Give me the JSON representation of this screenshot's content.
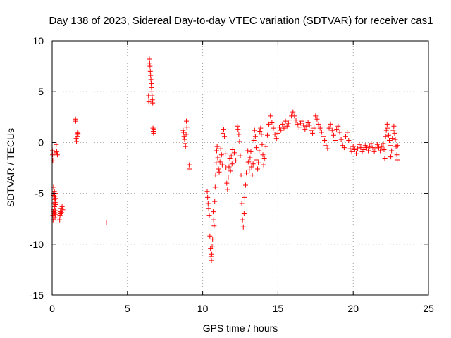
{
  "chart_data": {
    "type": "scatter",
    "title": "Day 138 of 2023, Sidereal Day-to-day VTEC variation (SDTVAR) for receiver cas1",
    "xlabel": "GPS time / hours",
    "ylabel": "SDTVAR / TECUs",
    "xlim": [
      0,
      25
    ],
    "ylim": [
      -15,
      10
    ],
    "xticks": [
      0,
      5,
      10,
      15,
      20,
      25
    ],
    "yticks": [
      -15,
      -10,
      -5,
      0,
      5,
      10
    ],
    "xtick_labels": [
      "0",
      "5",
      "10",
      "15",
      "20",
      "25"
    ],
    "ytick_labels": [
      "-15",
      "-10",
      "-5",
      "0",
      "5",
      "10"
    ],
    "grid": true,
    "marker": "+",
    "color": "#ff0000",
    "series": [
      {
        "name": "cas1",
        "points": [
          [
            0.02,
            -0.8
          ],
          [
            0.03,
            -1.2
          ],
          [
            0.04,
            -1.8
          ],
          [
            0.05,
            -7.2
          ],
          [
            0.06,
            -7.6
          ],
          [
            0.07,
            -6.8
          ],
          [
            0.08,
            -5.0
          ],
          [
            0.09,
            -4.4
          ],
          [
            0.1,
            -5.2
          ],
          [
            0.11,
            -6.0
          ],
          [
            0.12,
            -6.6
          ],
          [
            0.13,
            -7.0
          ],
          [
            0.14,
            -5.6
          ],
          [
            0.15,
            -4.8
          ],
          [
            0.16,
            -5.3
          ],
          [
            0.17,
            -6.3
          ],
          [
            0.18,
            -6.9
          ],
          [
            0.19,
            -7.4
          ],
          [
            0.2,
            -5.9
          ],
          [
            0.21,
            -5.5
          ],
          [
            0.22,
            -6.1
          ],
          [
            0.23,
            -6.7
          ],
          [
            0.24,
            -7.1
          ],
          [
            0.25,
            -5.0
          ],
          [
            0.26,
            -1.0
          ],
          [
            0.27,
            -0.2
          ],
          [
            0.3,
            -0.9
          ],
          [
            0.35,
            -1.2
          ],
          [
            0.5,
            -7.6
          ],
          [
            0.52,
            -7.2
          ],
          [
            0.55,
            -6.8
          ],
          [
            0.58,
            -7.0
          ],
          [
            0.6,
            -6.5
          ],
          [
            0.63,
            -6.9
          ],
          [
            0.66,
            -6.3
          ],
          [
            0.7,
            -6.6
          ],
          [
            1.55,
            2.3
          ],
          [
            1.57,
            2.1
          ],
          [
            1.6,
            0.4
          ],
          [
            1.62,
            0.1
          ],
          [
            1.65,
            0.8
          ],
          [
            1.68,
            1.0
          ],
          [
            1.7,
            0.6
          ],
          [
            1.72,
            0.9
          ],
          [
            3.6,
            -7.9
          ],
          [
            6.4,
            4.6
          ],
          [
            6.42,
            4.0
          ],
          [
            6.44,
            3.8
          ],
          [
            6.46,
            8.2
          ],
          [
            6.48,
            7.8
          ],
          [
            6.5,
            7.5
          ],
          [
            6.52,
            7.0
          ],
          [
            6.54,
            6.6
          ],
          [
            6.56,
            6.2
          ],
          [
            6.58,
            5.8
          ],
          [
            6.6,
            5.4
          ],
          [
            6.62,
            5.0
          ],
          [
            6.64,
            4.6
          ],
          [
            6.66,
            4.2
          ],
          [
            6.68,
            3.9
          ],
          [
            6.7,
            1.4
          ],
          [
            6.72,
            1.1
          ],
          [
            6.74,
            0.9
          ],
          [
            6.76,
            1.3
          ],
          [
            8.7,
            1.2
          ],
          [
            8.73,
            1.0
          ],
          [
            8.76,
            0.6
          ],
          [
            8.8,
            0.3
          ],
          [
            8.83,
            -0.1
          ],
          [
            8.86,
            -0.4
          ],
          [
            8.9,
            0.8
          ],
          [
            8.92,
            2.1
          ],
          [
            8.95,
            1.5
          ],
          [
            9.1,
            -2.2
          ],
          [
            9.15,
            -2.6
          ],
          [
            10.3,
            -4.8
          ],
          [
            10.33,
            -5.4
          ],
          [
            10.36,
            -6.0
          ],
          [
            10.4,
            -6.5
          ],
          [
            10.44,
            -7.2
          ],
          [
            10.48,
            -9.2
          ],
          [
            10.52,
            -10.4
          ],
          [
            10.55,
            -11.2
          ],
          [
            10.58,
            -11.6
          ],
          [
            10.6,
            -11.0
          ],
          [
            10.63,
            -10.2
          ],
          [
            10.66,
            -9.5
          ],
          [
            10.7,
            -6.8
          ],
          [
            10.73,
            -7.6
          ],
          [
            10.76,
            -8.2
          ],
          [
            10.8,
            -5.8
          ],
          [
            10.83,
            -4.4
          ],
          [
            10.86,
            -3.2
          ],
          [
            10.9,
            -2.0
          ],
          [
            10.93,
            -0.8
          ],
          [
            10.96,
            -0.4
          ],
          [
            11.0,
            -1.5
          ],
          [
            11.05,
            -2.6
          ],
          [
            11.1,
            -2.9
          ],
          [
            11.15,
            -1.9
          ],
          [
            11.2,
            -0.6
          ],
          [
            11.25,
            -1.2
          ],
          [
            11.3,
            -2.2
          ],
          [
            11.35,
            0.9
          ],
          [
            11.4,
            1.3
          ],
          [
            11.45,
            0.6
          ],
          [
            11.5,
            -1.1
          ],
          [
            11.55,
            -2.5
          ],
          [
            11.6,
            -4.0
          ],
          [
            11.65,
            -4.6
          ],
          [
            11.7,
            -3.4
          ],
          [
            11.75,
            -2.4
          ],
          [
            11.8,
            -1.6
          ],
          [
            11.85,
            -2.8
          ],
          [
            11.9,
            -1.3
          ],
          [
            11.95,
            -2.1
          ],
          [
            12.0,
            -0.7
          ],
          [
            12.1,
            -1.0
          ],
          [
            12.2,
            -1.8
          ],
          [
            12.3,
            1.6
          ],
          [
            12.35,
            1.3
          ],
          [
            12.4,
            0.8
          ],
          [
            12.45,
            0.1
          ],
          [
            12.5,
            -1.3
          ],
          [
            12.55,
            -3.2
          ],
          [
            12.6,
            -6.0
          ],
          [
            12.65,
            -7.6
          ],
          [
            12.7,
            -8.3
          ],
          [
            12.75,
            -7.0
          ],
          [
            12.8,
            -5.4
          ],
          [
            12.85,
            -4.2
          ],
          [
            12.9,
            -3.0
          ],
          [
            12.95,
            -2.0
          ],
          [
            13.0,
            -0.8
          ],
          [
            13.05,
            -1.9
          ],
          [
            13.1,
            -2.7
          ],
          [
            13.15,
            -1.5
          ],
          [
            13.2,
            -0.9
          ],
          [
            13.25,
            -2.4
          ],
          [
            13.3,
            -3.2
          ],
          [
            13.35,
            -2.1
          ],
          [
            13.4,
            0.2
          ],
          [
            13.45,
            1.2
          ],
          [
            13.5,
            0.6
          ],
          [
            13.55,
            -0.5
          ],
          [
            13.6,
            -1.7
          ],
          [
            13.65,
            -2.6
          ],
          [
            13.7,
            -2.0
          ],
          [
            13.75,
            -0.8
          ],
          [
            13.8,
            1.1
          ],
          [
            13.85,
            1.4
          ],
          [
            13.9,
            0.8
          ],
          [
            13.95,
            -0.2
          ],
          [
            14.0,
            -1.2
          ],
          [
            14.05,
            -2.2
          ],
          [
            14.1,
            -1.6
          ],
          [
            14.2,
            -0.4
          ],
          [
            14.3,
            0.7
          ],
          [
            14.4,
            1.8
          ],
          [
            14.5,
            2.6
          ],
          [
            14.6,
            2.0
          ],
          [
            14.7,
            1.4
          ],
          [
            14.8,
            0.8
          ],
          [
            14.9,
            0.4
          ],
          [
            15.0,
            0.9
          ],
          [
            15.1,
            1.5
          ],
          [
            15.2,
            1.2
          ],
          [
            15.3,
            1.8
          ],
          [
            15.4,
            1.4
          ],
          [
            15.5,
            2.1
          ],
          [
            15.6,
            1.6
          ],
          [
            15.7,
            1.9
          ],
          [
            15.8,
            2.2
          ],
          [
            15.9,
            2.6
          ],
          [
            16.0,
            3.0
          ],
          [
            16.1,
            2.6
          ],
          [
            16.2,
            2.2
          ],
          [
            16.3,
            1.8
          ],
          [
            16.4,
            1.5
          ],
          [
            16.5,
            1.9
          ],
          [
            16.6,
            2.1
          ],
          [
            16.7,
            1.7
          ],
          [
            16.8,
            1.3
          ],
          [
            16.9,
            1.6
          ],
          [
            17.0,
            2.0
          ],
          [
            17.1,
            1.7
          ],
          [
            17.2,
            1.2
          ],
          [
            17.3,
            0.9
          ],
          [
            17.4,
            1.4
          ],
          [
            17.5,
            2.6
          ],
          [
            17.6,
            2.3
          ],
          [
            17.7,
            1.8
          ],
          [
            17.8,
            1.4
          ],
          [
            17.9,
            1.0
          ],
          [
            18.0,
            0.6
          ],
          [
            18.1,
            0.2
          ],
          [
            18.2,
            -0.3
          ],
          [
            18.3,
            -0.6
          ],
          [
            18.4,
            1.4
          ],
          [
            18.5,
            1.8
          ],
          [
            18.6,
            1.2
          ],
          [
            18.7,
            0.7
          ],
          [
            18.8,
            0.2
          ],
          [
            18.9,
            1.3
          ],
          [
            19.0,
            1.6
          ],
          [
            19.1,
            1.0
          ],
          [
            19.2,
            0.3
          ],
          [
            19.3,
            -0.3
          ],
          [
            19.4,
            -0.5
          ],
          [
            19.5,
            0.6
          ],
          [
            19.6,
            1.0
          ],
          [
            19.7,
            0.2
          ],
          [
            19.8,
            -0.6
          ],
          [
            19.9,
            -0.9
          ],
          [
            20.0,
            -0.4
          ],
          [
            20.1,
            -0.7
          ],
          [
            20.2,
            -1.1
          ],
          [
            20.3,
            -0.6
          ],
          [
            20.4,
            -0.2
          ],
          [
            20.5,
            -0.5
          ],
          [
            20.6,
            -0.9
          ],
          [
            20.7,
            -0.7
          ],
          [
            20.8,
            -0.3
          ],
          [
            20.9,
            -0.5
          ],
          [
            21.0,
            -0.8
          ],
          [
            21.1,
            -0.4
          ],
          [
            21.2,
            -0.1
          ],
          [
            21.3,
            -0.5
          ],
          [
            21.4,
            -0.9
          ],
          [
            21.5,
            -0.6
          ],
          [
            21.6,
            -0.2
          ],
          [
            21.7,
            -0.5
          ],
          [
            21.8,
            -0.8
          ],
          [
            21.9,
            -0.4
          ],
          [
            22.0,
            -0.1
          ],
          [
            22.05,
            -0.7
          ],
          [
            22.1,
            -1.6
          ],
          [
            22.15,
            0.6
          ],
          [
            22.2,
            1.2
          ],
          [
            22.25,
            1.8
          ],
          [
            22.3,
            1.4
          ],
          [
            22.35,
            0.7
          ],
          [
            22.4,
            0.2
          ],
          [
            22.45,
            -0.3
          ],
          [
            22.5,
            -1.4
          ],
          [
            22.55,
            -0.8
          ],
          [
            22.6,
            0.4
          ],
          [
            22.65,
            1.2
          ],
          [
            22.7,
            1.6
          ],
          [
            22.75,
            0.9
          ],
          [
            22.8,
            0.3
          ],
          [
            22.85,
            -0.4
          ],
          [
            22.9,
            -1.2
          ],
          [
            22.92,
            -1.7
          ],
          [
            22.95,
            -0.3
          ]
        ]
      }
    ]
  }
}
